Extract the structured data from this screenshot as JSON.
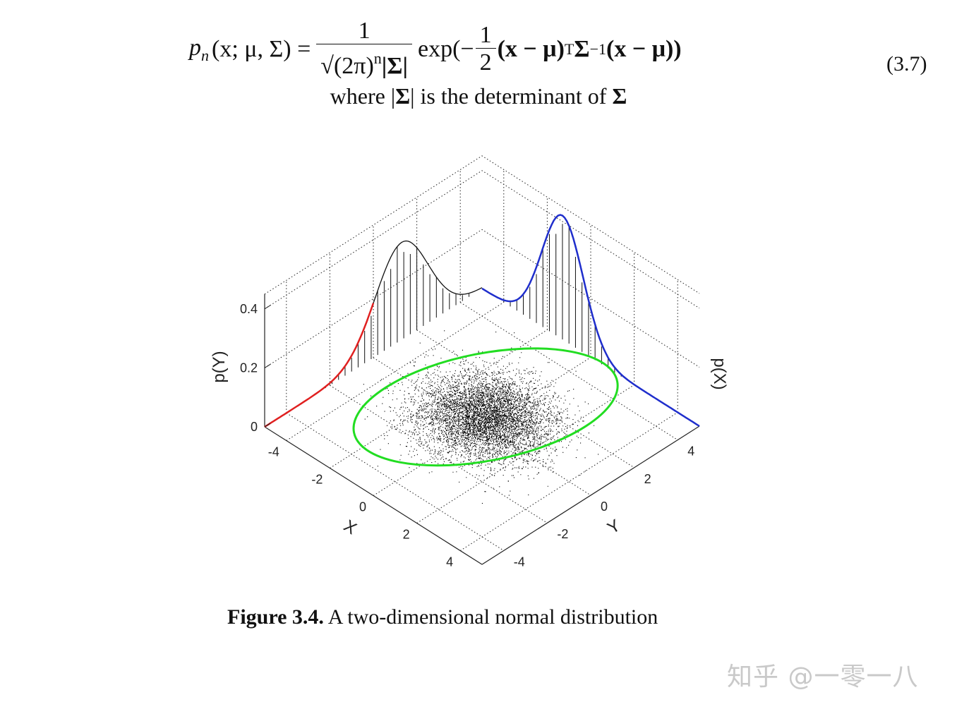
{
  "equation": {
    "lhs": "p",
    "lhs_sub": "n",
    "lhs_args": "(x; μ, Σ) =",
    "numerator": "1",
    "denominator_a": "√(2π)",
    "denominator_sup": "n",
    "denominator_b": "|Σ|",
    "rhs_a": "exp(−",
    "rhs_frac_num": "1",
    "rhs_frac_den": "2",
    "rhs_b": "(x − μ)",
    "rhs_sup1": "T",
    "rhs_c": "Σ",
    "rhs_sup2": "−1",
    "rhs_d": "(x − μ))",
    "number": "(3.7)"
  },
  "where_text": {
    "prefix": "where |",
    "sigma1": "Σ",
    "middle": "| is the determinant of ",
    "sigma2": "Σ"
  },
  "chart_data": {
    "type": "scatter",
    "subtype": "3d-bivariate-normal-with-marginals",
    "xlabel": "X",
    "ylabel": "Y",
    "zlabel_left": "p(Y)",
    "zlabel_right": "p(X)",
    "x_ticks": [
      "-4",
      "-2",
      "0",
      "2",
      "4"
    ],
    "y_ticks": [
      "-4",
      "-2",
      "0",
      "2",
      "4"
    ],
    "z_ticks": [
      "0",
      "0.2",
      "0.4"
    ],
    "xlim": [
      -5,
      5
    ],
    "ylim": [
      -5,
      5
    ],
    "zlim": [
      0,
      0.45
    ],
    "grid": true,
    "marginal_x": {
      "color": "#1f2ecc",
      "peak_at": -1.3,
      "peak_value": 0.42
    },
    "marginal_y": {
      "color": "#e02020",
      "peak_at": 1.3,
      "peak_value": 0.33
    },
    "confidence_ellipse_color": "#22dd22",
    "scatter_color": "#000000"
  },
  "caption": {
    "label": "Figure 3.4.",
    "text": " A two-dimensional normal distribution"
  },
  "watermark": "知乎 @一零一八"
}
